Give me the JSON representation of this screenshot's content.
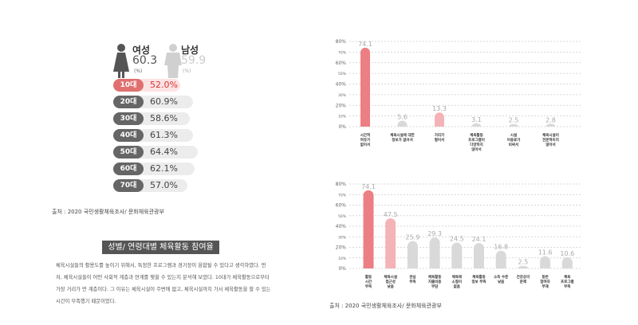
{
  "left": {
    "female": {
      "label": "여성",
      "value": "60.3",
      "unit": "(%)"
    },
    "male": {
      "label": "남성",
      "value": "59.9",
      "unit": "(%)"
    },
    "ages": [
      {
        "label": "10대",
        "value": 52.0,
        "text": "52.0%",
        "highlight": true
      },
      {
        "label": "20대",
        "value": 60.9,
        "text": "60.9%"
      },
      {
        "label": "30대",
        "value": 58.6,
        "text": "58.6%"
      },
      {
        "label": "40대",
        "value": 61.3,
        "text": "61.3%"
      },
      {
        "label": "50대",
        "value": 64.4,
        "text": "64.4%"
      },
      {
        "label": "60대",
        "value": 62.1,
        "text": "62.1%"
      },
      {
        "label": "70대",
        "value": 57.0,
        "text": "57.0%"
      }
    ],
    "source": "출처 : 2020 국민생활체육조사/ 문화체육관광부",
    "section_title": "성별/ 연령대별 체육활동 참여율",
    "paragraph": "체육시설들의 활용도를 높이기 위해서, 특정한 프로그램과 경기장이 융합될 수 있다고 생각하였다. 먼저, 체육시설들이 어떤 사회적 계층과 연계를 맺을 수 있는지 분석해 보았다. 10대가 체육활동으로부터 가장 거리가 먼 계층이다. 그 이유는 체육시설이 주변에 없고, 체육시설까지 가서 체육활동을 할 수 있는 시간이 부족했기 때문이었다."
  },
  "colors": {
    "accent": "#ec7f84",
    "accent_light": "#f4b3b6",
    "gray": "#d9d9d9"
  },
  "chart_data": [
    {
      "type": "bar",
      "ylim": [
        0,
        80
      ],
      "yticks": [
        "0%",
        "10%",
        "20%",
        "30%",
        "40%",
        "50%",
        "60%",
        "70%",
        "80%"
      ],
      "categories": [
        [
          "시간적",
          "여유가",
          "없어서"
        ],
        [
          "체육시설에 대한",
          "정보가 없어서"
        ],
        [
          "거리가",
          "멀어서"
        ],
        [
          "체육활동",
          "프로그램이",
          "다양하지",
          "않아서"
        ],
        [
          "시설",
          "이용료가",
          "비싸서"
        ],
        [
          "체육시설이",
          "전문적이지",
          "않아서"
        ]
      ],
      "values": [
        74.1,
        5.6,
        13.3,
        3.1,
        2.5,
        2.8
      ],
      "labels": [
        "74.1",
        "5.6",
        "13.3",
        "3.1",
        "2.5",
        "2.8"
      ],
      "colors": [
        "#ec7f84",
        "#d9d9d9",
        "#f4b3b6",
        "#d9d9d9",
        "#d9d9d9",
        "#d9d9d9"
      ]
    },
    {
      "type": "bar",
      "ylim": [
        0,
        80
      ],
      "yticks": [
        "0%",
        "10%",
        "20%",
        "30%",
        "40%",
        "50%",
        "60%",
        "70%",
        "80%"
      ],
      "categories": [
        [
          "활동",
          "시간",
          "부족"
        ],
        [
          "체육시설",
          "접근성",
          "낮음"
        ],
        [
          "관심",
          "부족"
        ],
        [
          "체육활동",
          "지출비용",
          "부담"
        ],
        [
          "체육에",
          "소질이",
          "없음"
        ],
        [
          "체육활동",
          "정보 부족"
        ],
        [
          "소득 수준",
          "낮음"
        ],
        [
          "건강상의",
          "문제"
        ],
        [
          "동반",
          "참여자",
          "부재"
        ],
        [
          "체육",
          "프로그램",
          "부족"
        ]
      ],
      "values": [
        74.1,
        47.5,
        25.9,
        29.3,
        24.5,
        24.1,
        16.8,
        2.5,
        11.6,
        10.6
      ],
      "labels": [
        "74.1",
        "47.5",
        "25.9",
        "29.3",
        "24.5",
        "24.1",
        "16.8",
        "2.5",
        "11.6",
        "10.6"
      ],
      "colors": [
        "#ec7f84",
        "#f4b3b6",
        "#d9d9d9",
        "#d9d9d9",
        "#d9d9d9",
        "#d9d9d9",
        "#d9d9d9",
        "#d9d9d9",
        "#d9d9d9",
        "#d9d9d9"
      ],
      "source": "출처 : 2020 국민생활체육조사/ 문화체육관광부"
    }
  ]
}
